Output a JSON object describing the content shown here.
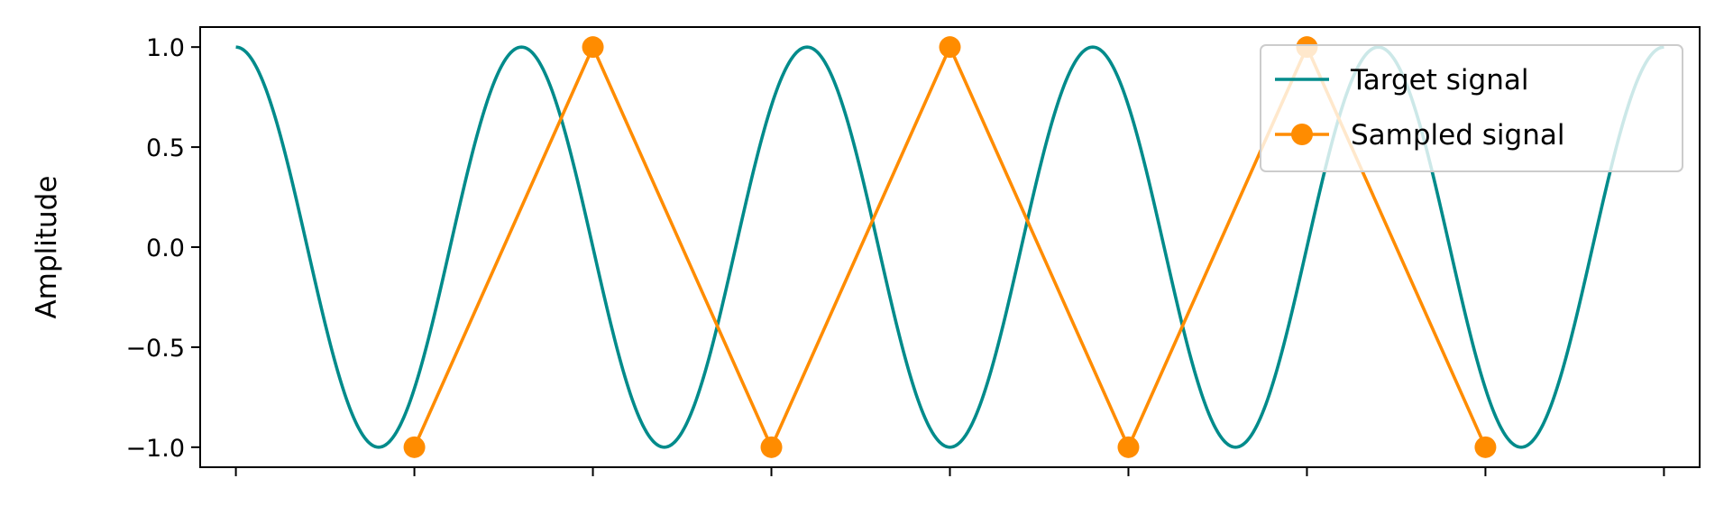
{
  "chart_data": {
    "type": "line",
    "title": "",
    "xlabel": "",
    "ylabel": "Amplitude",
    "xlim": [
      -0.2,
      8.2
    ],
    "ylim": [
      -1.1,
      1.1
    ],
    "x_ticks": [
      0,
      1,
      2,
      3,
      4,
      5,
      6,
      7,
      8
    ],
    "x_tick_labels_shown": false,
    "y_ticks": [
      1.0,
      0.5,
      0.0,
      -0.5,
      -1.0
    ],
    "y_tick_labels": [
      "1.0",
      "0.5",
      "0.0",
      "−0.5",
      "−1.0"
    ],
    "grid": false,
    "legend_position": "upper right",
    "series": [
      {
        "name": "Target signal",
        "kind": "continuous",
        "function": "cos(2*pi*0.625*x)",
        "x_range": [
          0,
          8
        ],
        "color": "#008B8B"
      },
      {
        "name": "Sampled signal",
        "kind": "points",
        "marker": "circle",
        "x": [
          1,
          2,
          3,
          4,
          5,
          6,
          7
        ],
        "y": [
          -1.0,
          1.0,
          -1.0,
          1.0,
          -1.0,
          1.0,
          -1.0
        ],
        "color": "#FF8C00"
      }
    ]
  }
}
